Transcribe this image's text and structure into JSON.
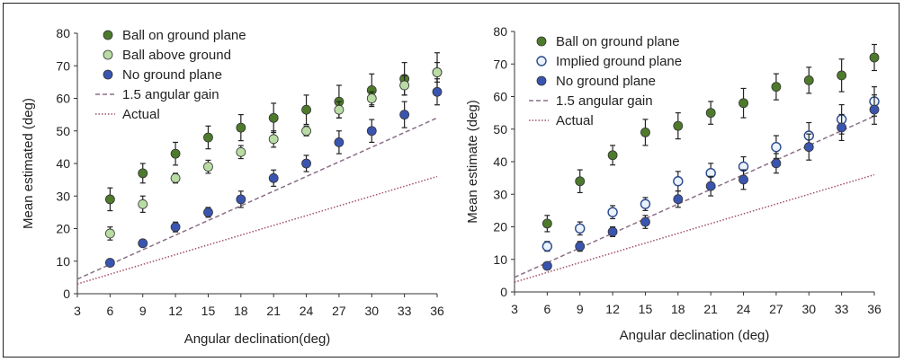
{
  "chart_data": [
    {
      "type": "scatter",
      "xlabel": "Angular declination(deg)",
      "ylabel": "Mean estimated (deg)",
      "xlim": [
        3,
        36
      ],
      "ylim": [
        0,
        80
      ],
      "xticks": [
        3,
        6,
        9,
        12,
        15,
        18,
        21,
        24,
        27,
        30,
        33,
        36
      ],
      "yticks": [
        0,
        10,
        20,
        30,
        40,
        50,
        60,
        70,
        80
      ],
      "legend_position": "top-left",
      "grid": false,
      "series": [
        {
          "name": "Ball on ground plane",
          "marker": "filled",
          "color": "#4e7a2c",
          "x": [
            6,
            9,
            12,
            15,
            18,
            21,
            24,
            27,
            30,
            33,
            36
          ],
          "y": [
            29,
            37,
            43,
            48,
            51,
            54,
            56.5,
            59,
            62.5,
            66,
            68
          ],
          "err": [
            3.5,
            3,
            3.5,
            3.5,
            4,
            4.5,
            4.5,
            5,
            5,
            5,
            6
          ]
        },
        {
          "name": "Ball above ground",
          "marker": "filled",
          "color": "#b9dca4",
          "x": [
            6,
            9,
            12,
            15,
            18,
            21,
            24,
            27,
            30,
            33,
            36
          ],
          "y": [
            18.5,
            27.5,
            35.5,
            39,
            43.5,
            47.5,
            50,
            56.5,
            60,
            64,
            68
          ],
          "err": [
            2,
            2.5,
            1.5,
            2,
            2,
            2.5,
            1.5,
            2.5,
            2,
            3,
            3
          ]
        },
        {
          "name": "No ground plane",
          "marker": "filled",
          "color": "#3a55b0",
          "x": [
            6,
            9,
            12,
            15,
            18,
            21,
            24,
            27,
            30,
            33,
            36
          ],
          "y": [
            9.5,
            15.5,
            20.5,
            25,
            29,
            35.5,
            40,
            46.5,
            50,
            55,
            62
          ],
          "err": [
            1,
            1,
            1.5,
            1.5,
            2.5,
            2.5,
            2.5,
            3.5,
            3.5,
            4,
            4
          ]
        },
        {
          "name": "1.5 angular gain",
          "line": "dashed",
          "color": "#8a6f88",
          "x": [
            3,
            36
          ],
          "y": [
            4.5,
            54
          ]
        },
        {
          "name": "Actual",
          "line": "dotted",
          "color": "#a05064",
          "x": [
            3,
            36
          ],
          "y": [
            3,
            36
          ]
        }
      ]
    },
    {
      "type": "scatter",
      "xlabel": "Angular declination (deg)",
      "ylabel": "Mean estimate (deg)",
      "xlim": [
        3,
        36
      ],
      "ylim": [
        0,
        80
      ],
      "xticks": [
        3,
        6,
        9,
        12,
        15,
        18,
        21,
        24,
        27,
        30,
        33,
        36
      ],
      "yticks": [
        0,
        10,
        20,
        30,
        40,
        50,
        60,
        70,
        80
      ],
      "legend_position": "top-left",
      "grid": false,
      "series": [
        {
          "name": "Ball on ground plane",
          "marker": "filled",
          "color": "#4e7a2c",
          "x": [
            6,
            9,
            12,
            15,
            18,
            21,
            24,
            27,
            30,
            33,
            36
          ],
          "y": [
            21,
            34,
            42,
            49,
            51,
            55,
            58,
            63,
            65,
            66.5,
            72
          ],
          "err": [
            2.5,
            3.5,
            3,
            4,
            4,
            3.5,
            4.5,
            4,
            4,
            5,
            4
          ]
        },
        {
          "name": "Implied ground plane",
          "marker": "hollow",
          "color": "#2c4a8a",
          "x": [
            6,
            9,
            12,
            15,
            18,
            21,
            24,
            27,
            30,
            33,
            36
          ],
          "y": [
            14,
            19.5,
            24.5,
            27,
            34,
            36.5,
            38.5,
            44.5,
            48,
            53,
            58.5
          ],
          "err": [
            1.5,
            2,
            2,
            2,
            3,
            3,
            3,
            3.5,
            4,
            4.5,
            4.5
          ]
        },
        {
          "name": "No ground plane",
          "marker": "filled",
          "color": "#3a55b0",
          "x": [
            6,
            9,
            12,
            15,
            18,
            21,
            24,
            27,
            30,
            33,
            36
          ],
          "y": [
            8,
            14,
            18.5,
            21.5,
            28.5,
            32.5,
            34.5,
            39.5,
            44.5,
            50.5,
            56
          ],
          "err": [
            1,
            1.5,
            1.5,
            2,
            2.5,
            3,
            3,
            3,
            4,
            4,
            4.5
          ]
        },
        {
          "name": "1.5 angular gain",
          "line": "dashed",
          "color": "#8a6f88",
          "x": [
            3,
            36
          ],
          "y": [
            4.5,
            54
          ]
        },
        {
          "name": "Actual",
          "line": "dotted",
          "color": "#a05064",
          "x": [
            3,
            36
          ],
          "y": [
            3,
            36
          ]
        }
      ]
    }
  ]
}
